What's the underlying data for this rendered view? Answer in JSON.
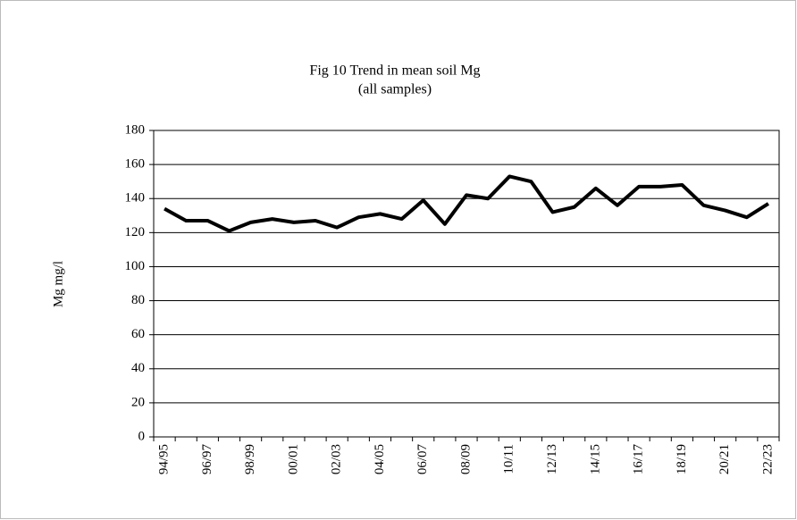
{
  "chart_data": {
    "type": "line",
    "title": "Fig 10 Trend in mean soil Mg",
    "subtitle": "(all samples)",
    "y_label": "Mg mg/l",
    "categories": [
      "94/95",
      null,
      "96/97",
      null,
      "98/99",
      null,
      "00/01",
      null,
      "02/03",
      null,
      "04/05",
      null,
      "06/07",
      null,
      "08/09",
      null,
      "10/11",
      null,
      "12/13",
      null,
      "14/15",
      null,
      "16/17",
      null,
      "18/19",
      null,
      "20/21",
      null,
      "22/23"
    ],
    "series": [
      {
        "name": "Mean soil Mg",
        "color": "#000000",
        "values": [
          134,
          127,
          127,
          121,
          126,
          128,
          126,
          127,
          123,
          129,
          131,
          128,
          139,
          125,
          142,
          140,
          153,
          150,
          132,
          135,
          146,
          136,
          147,
          147,
          148,
          136,
          133,
          129,
          137
        ]
      }
    ],
    "ylim": [
      0,
      180
    ],
    "yticks": [
      0,
      20,
      40,
      60,
      80,
      100,
      120,
      140,
      160,
      180
    ],
    "grid": true
  }
}
